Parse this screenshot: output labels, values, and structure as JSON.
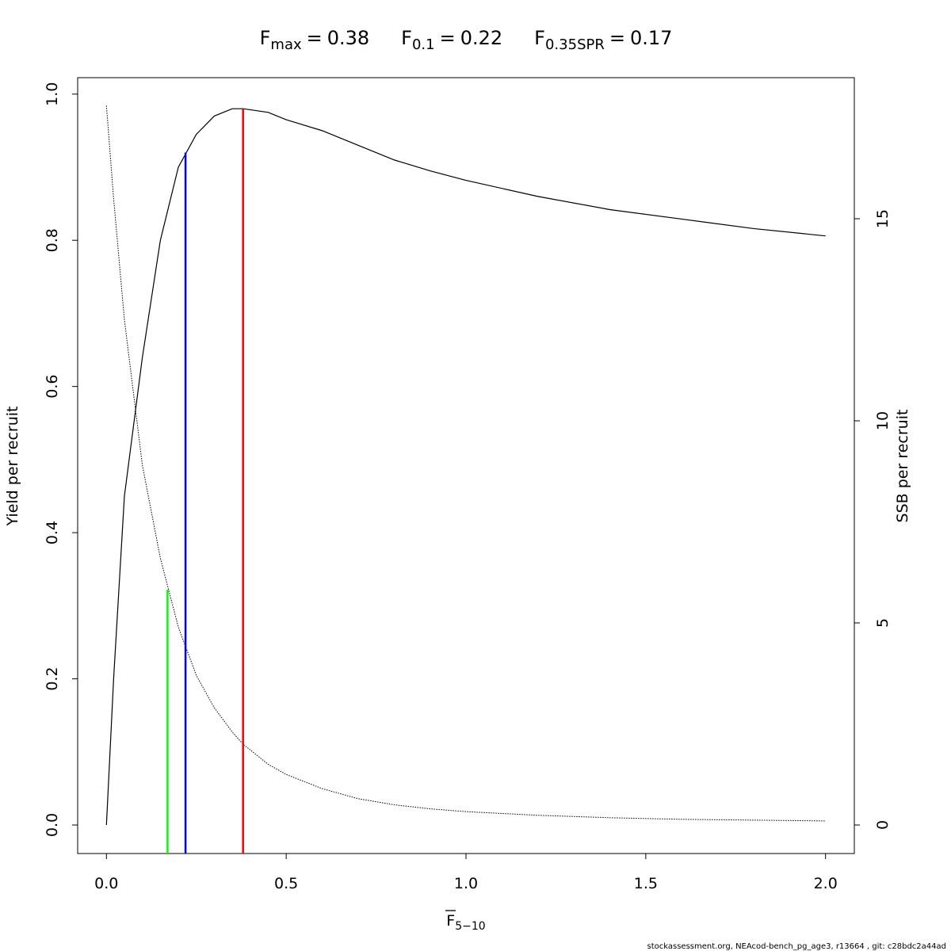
{
  "chart_data": {
    "type": "line",
    "reference_lines": [
      {
        "symbol": "F",
        "subscript": "max",
        "sign": "=",
        "x": 0.38,
        "top": 0.98,
        "axis": "y",
        "color": "#ff0000"
      },
      {
        "symbol": "F",
        "subscript": "0.1",
        "sign": "=",
        "x": 0.22,
        "top": 0.92,
        "axis": "y",
        "color": "#0000ff"
      },
      {
        "symbol": "F",
        "subscript": "0.35SPR",
        "sign": "=",
        "x": 0.17,
        "top": 5.82,
        "axis": "y2",
        "color": "#00ff00"
      }
    ],
    "x": [
      0,
      0.02,
      0.05,
      0.1,
      0.15,
      0.2,
      0.25,
      0.3,
      0.35,
      0.38,
      0.45,
      0.5,
      0.6,
      0.7,
      0.8,
      0.9,
      1.0,
      1.2,
      1.4,
      1.6,
      1.8,
      2.0
    ],
    "series": [
      {
        "axis": "y",
        "color": "#000000",
        "dashed": false,
        "values": [
          0,
          0.2,
          0.45,
          0.64,
          0.8,
          0.9,
          0.945,
          0.97,
          0.98,
          0.98,
          0.975,
          0.965,
          0.95,
          0.93,
          0.91,
          0.895,
          0.882,
          0.86,
          0.842,
          0.829,
          0.816,
          0.806
        ]
      },
      {
        "axis": "y2",
        "color": "#000000",
        "dashed": true,
        "values": [
          17.8,
          15.5,
          12.5,
          8.9,
          6.6,
          4.9,
          3.7,
          2.9,
          2.3,
          2.0,
          1.5,
          1.25,
          0.9,
          0.65,
          0.5,
          0.4,
          0.33,
          0.24,
          0.18,
          0.14,
          0.12,
          0.1
        ]
      }
    ],
    "xlabel": {
      "text": "F",
      "subscript": "5−10",
      "overline": true
    },
    "ylabel": "Yield per recruit",
    "y2label": "SSB per recruit",
    "xlim": [
      -0.08,
      2.08
    ],
    "ylim": [
      -0.039,
      1.0225
    ],
    "y2lim": [
      -0.706,
      18.49
    ],
    "xticks": [
      {
        "value": 0,
        "label": "0.0"
      },
      0.5,
      {
        "value": 1,
        "label": "1.0"
      },
      1.5,
      {
        "value": 2,
        "label": "2.0"
      }
    ],
    "yticks": [
      {
        "value": 0,
        "label": "0.0"
      },
      0.2,
      0.4,
      0.6,
      0.8,
      {
        "value": 1,
        "label": "1.0"
      }
    ],
    "y2ticks": [
      0,
      5,
      10,
      15
    ],
    "footer": "stockassessment.org, NEAcod-bench_pg_age3, r13664 , git: c28bdc2a44ad"
  }
}
